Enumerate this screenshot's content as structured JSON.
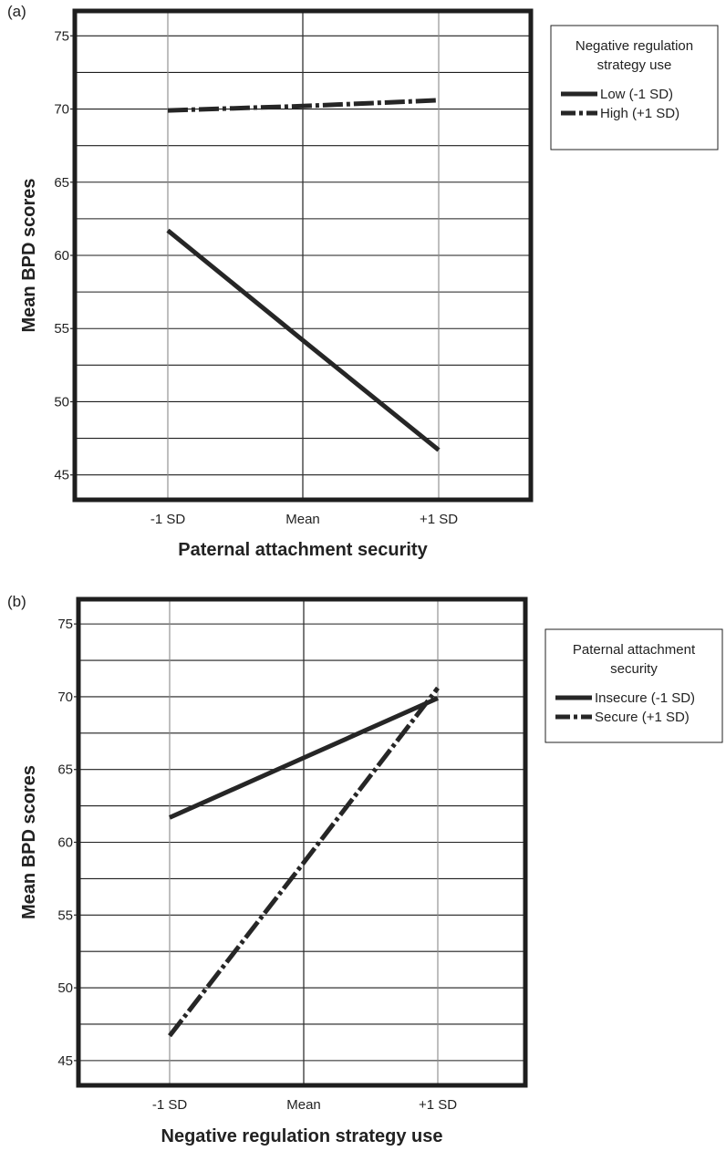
{
  "chart_data": [
    {
      "type": "line",
      "panel_label": "(a)",
      "xlabel": "Paternal attachment security",
      "ylabel": "Mean BPD scores",
      "categories": [
        "-1 SD",
        "Mean",
        "+1 SD"
      ],
      "yticks": [
        45,
        50,
        55,
        60,
        65,
        70,
        75
      ],
      "ylim": [
        43.3,
        76.7
      ],
      "grid": true,
      "legend": {
        "title_lines": [
          "Negative regulation",
          "strategy use"
        ],
        "placement": "right"
      },
      "series": [
        {
          "name": "Low (-1 SD)",
          "style": "solid",
          "values": [
            61.7,
            54.2,
            46.7
          ]
        },
        {
          "name": "High (+1 SD)",
          "style": "dashdot",
          "values": [
            69.9,
            70.2,
            70.6
          ]
        }
      ]
    },
    {
      "type": "line",
      "panel_label": "(b)",
      "xlabel": "Negative regulation strategy use",
      "ylabel": "Mean BPD scores",
      "categories": [
        "-1 SD",
        "Mean",
        "+1 SD"
      ],
      "yticks": [
        45,
        50,
        55,
        60,
        65,
        70,
        75
      ],
      "ylim": [
        43.3,
        76.7
      ],
      "grid": true,
      "legend": {
        "title_lines": [
          "Paternal attachment",
          "security"
        ],
        "placement": "right"
      },
      "series": [
        {
          "name": "Insecure (-1 SD)",
          "style": "solid",
          "values": [
            61.7,
            65.8,
            69.9
          ]
        },
        {
          "name": "Secure (+1 SD)",
          "style": "dashdot",
          "values": [
            46.7,
            58.6,
            70.6
          ]
        }
      ]
    }
  ]
}
